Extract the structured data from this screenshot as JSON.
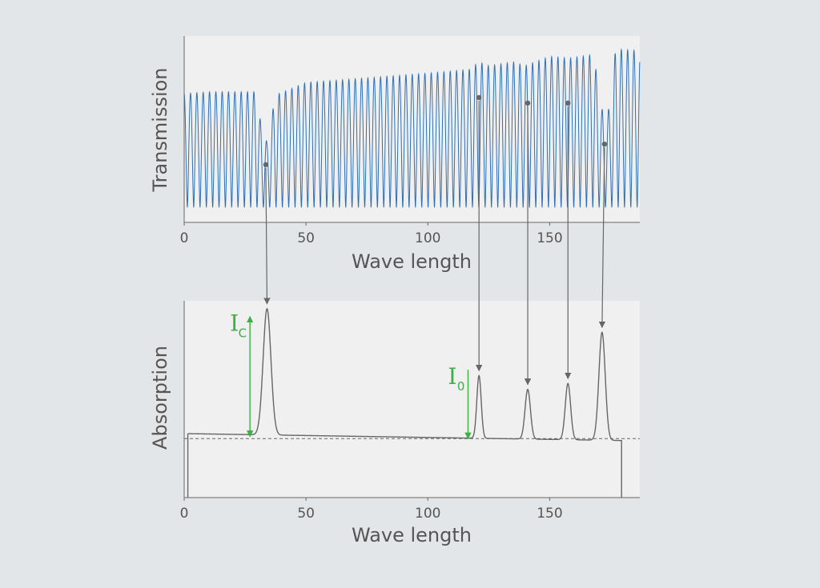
{
  "colors": {
    "background": "#e3e6e9",
    "plot_bg": "#f0f0f0",
    "transmission_line": "#2e6fb5",
    "absorption_line": "#666666",
    "annotation": "#3cb043",
    "arrow": "#666666",
    "text": "#555555"
  },
  "chart_data": [
    {
      "id": "transmission",
      "type": "line",
      "title": "",
      "xlabel": "Wave length",
      "ylabel": "Transmission",
      "xlim": [
        0,
        187
      ],
      "ylim": [
        0,
        1
      ],
      "x_ticks": [
        0,
        50,
        100,
        150
      ],
      "grid": false,
      "series": [
        {
          "kind": "oscillation",
          "x_start": 0,
          "x_end": 187,
          "period": 2.6,
          "envelope": [
            [
              0,
              0.69
            ],
            [
              10,
              0.7
            ],
            [
              29,
              0.7
            ],
            [
              32,
              0.5
            ],
            [
              34,
              0.43
            ],
            [
              36,
              0.55
            ],
            [
              37,
              0.68
            ],
            [
              50,
              0.75
            ],
            [
              70,
              0.77
            ],
            [
              100,
              0.8
            ],
            [
              117,
              0.82
            ],
            [
              121,
              0.86
            ],
            [
              125,
              0.84
            ],
            [
              135,
              0.86
            ],
            [
              140,
              0.84
            ],
            [
              150,
              0.89
            ],
            [
              158,
              0.88
            ],
            [
              168,
              0.9
            ],
            [
              172,
              0.57
            ],
            [
              175,
              0.62
            ],
            [
              177,
              0.93
            ],
            [
              187,
              0.92
            ]
          ],
          "trough_floor": 0.08
        }
      ],
      "markers": [
        {
          "x": 33.5,
          "y": 0.31
        },
        {
          "x": 121,
          "y": 0.67
        },
        {
          "x": 141,
          "y": 0.64
        },
        {
          "x": 157.5,
          "y": 0.64
        },
        {
          "x": 172.5,
          "y": 0.42
        }
      ]
    },
    {
      "id": "absorption",
      "type": "line",
      "title": "",
      "xlabel": "Wave length",
      "ylabel": "Absorption",
      "xlim": [
        0,
        187
      ],
      "ylim": [
        0,
        1
      ],
      "x_ticks": [
        0,
        50,
        100,
        150
      ],
      "grid": false,
      "baseline": {
        "x_start": 1.5,
        "x_end": 179.5,
        "y_start": 0.325,
        "y_end": 0.29,
        "floor": 0.0
      },
      "dashed_reference": 0.3,
      "peaks": [
        {
          "x": 34,
          "height": 0.96,
          "width": 1.6
        },
        {
          "x": 121,
          "height": 0.62,
          "width": 0.9
        },
        {
          "x": 141,
          "height": 0.55,
          "width": 1.1
        },
        {
          "x": 157.5,
          "height": 0.58,
          "width": 1.1
        },
        {
          "x": 171.5,
          "height": 0.84,
          "width": 1.3
        }
      ],
      "annotations": [
        {
          "label": "I",
          "subscript": "C",
          "x": 27,
          "y_top": 0.92,
          "y_bottom": 0.31,
          "double_arrow": true
        },
        {
          "label": "I",
          "subscript": "0",
          "x": 116.5,
          "y_top": 0.65,
          "y_bottom": 0.3,
          "double_arrow": false
        }
      ]
    }
  ]
}
